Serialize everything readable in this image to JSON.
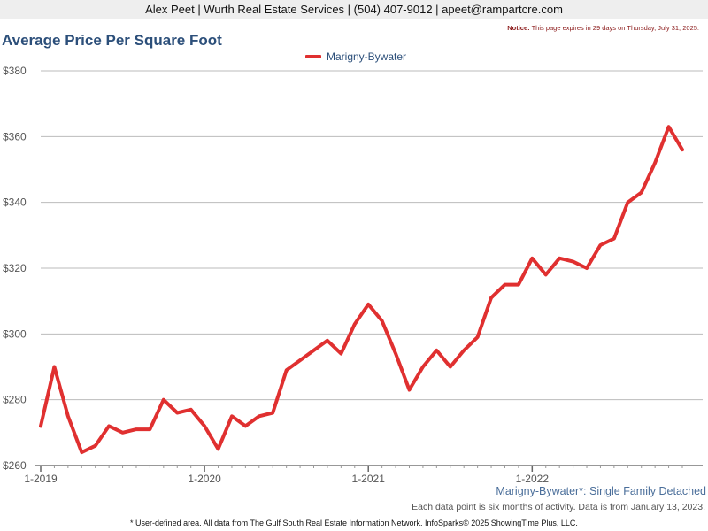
{
  "header": {
    "agent_line": "Alex Peet | Wurth Real Estate Services | (504) 407-9012 | apeet@rampartcre.com",
    "notice_label": "Notice:",
    "notice_text": "This page expires in 29 days on Thursday, July 31, 2025."
  },
  "footer": {
    "subtitle": "Marigny-Bywater*: Single Family Detached",
    "source": "Each data point is six months of activity. Data is from January 13, 2023.",
    "disclaimer": "* User-defined area. All data from The Gulf South Real Estate Information Network. InfoSparks© 2025 ShowingTime Plus, LLC."
  },
  "colors": {
    "series": "#e03030",
    "title": "#2c4f7a",
    "grid": "#bbbbbb"
  },
  "chart_data": {
    "type": "line",
    "title": "Average Price Per Square Foot",
    "xlabel": "",
    "ylabel": "",
    "ylim": [
      260,
      380
    ],
    "yticks": [
      260,
      280,
      300,
      320,
      340,
      360,
      380
    ],
    "ytick_labels": [
      "$260",
      "$280",
      "$300",
      "$320",
      "$340",
      "$360",
      "$380"
    ],
    "xticks": [
      {
        "month_index": 0,
        "label": "1-2019"
      },
      {
        "month_index": 12,
        "label": "1-2020"
      },
      {
        "month_index": 24,
        "label": "1-2021"
      },
      {
        "month_index": 36,
        "label": "1-2022"
      }
    ],
    "grid": true,
    "legend_position": "top-center",
    "series": [
      {
        "name": "Marigny-Bywater",
        "x": [
          "1-2019",
          "2-2019",
          "3-2019",
          "4-2019",
          "5-2019",
          "6-2019",
          "7-2019",
          "8-2019",
          "9-2019",
          "10-2019",
          "11-2019",
          "12-2019",
          "1-2020",
          "2-2020",
          "3-2020",
          "4-2020",
          "5-2020",
          "6-2020",
          "7-2020",
          "8-2020",
          "9-2020",
          "10-2020",
          "11-2020",
          "12-2020",
          "1-2021",
          "2-2021",
          "3-2021",
          "4-2021",
          "5-2021",
          "6-2021",
          "7-2021",
          "8-2021",
          "9-2021",
          "10-2021",
          "11-2021",
          "12-2021",
          "1-2022",
          "2-2022",
          "3-2022",
          "4-2022",
          "5-2022",
          "6-2022",
          "7-2022",
          "8-2022",
          "9-2022",
          "10-2022",
          "11-2022",
          "12-2022"
        ],
        "values": [
          272,
          290,
          275,
          264,
          266,
          272,
          270,
          271,
          271,
          280,
          276,
          277,
          272,
          265,
          275,
          272,
          275,
          276,
          289,
          292,
          295,
          298,
          294,
          303,
          309,
          304,
          294,
          283,
          290,
          295,
          290,
          295,
          299,
          311,
          315,
          315,
          323,
          318,
          323,
          322,
          320,
          327,
          329,
          340,
          343,
          352,
          363,
          356
        ]
      }
    ]
  }
}
